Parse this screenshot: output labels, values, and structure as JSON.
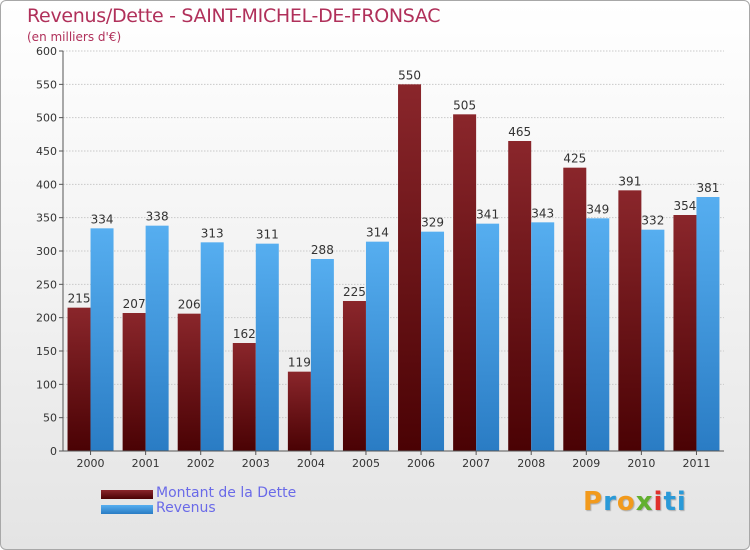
{
  "title": "Revenus/Dette - SAINT-MICHEL-DE-FRONSAC",
  "subtitle": "(en milliers d'€)",
  "logo": {
    "text": "Proxiti",
    "letters": [
      "P",
      "r",
      "o",
      "x",
      "i",
      "ti"
    ]
  },
  "colors": {
    "title": "#b0305a",
    "dette": "#7a1418",
    "revenus": "#3a97e0",
    "legend_text": "#6a6ae8"
  },
  "chart_data": {
    "type": "bar",
    "title": "Revenus/Dette - SAINT-MICHEL-DE-FRONSAC",
    "ylabel": "(en milliers d'€)",
    "xlabel": "",
    "ylim": [
      0,
      600
    ],
    "yticks": [
      0,
      50,
      100,
      150,
      200,
      250,
      300,
      350,
      400,
      450,
      500,
      550,
      600
    ],
    "grid": true,
    "legend": "bottom-left",
    "categories": [
      "2000",
      "2001",
      "2002",
      "2003",
      "2004",
      "2005",
      "2006",
      "2007",
      "2008",
      "2009",
      "2010",
      "2011"
    ],
    "series": [
      {
        "name": "Montant de la Dette",
        "color": "#7a1418",
        "values": [
          215,
          207,
          206,
          162,
          119,
          225,
          550,
          505,
          465,
          425,
          391,
          354
        ]
      },
      {
        "name": "Revenus",
        "color": "#3a97e0",
        "values": [
          334,
          338,
          313,
          311,
          288,
          314,
          329,
          341,
          343,
          349,
          332,
          381
        ]
      }
    ]
  }
}
